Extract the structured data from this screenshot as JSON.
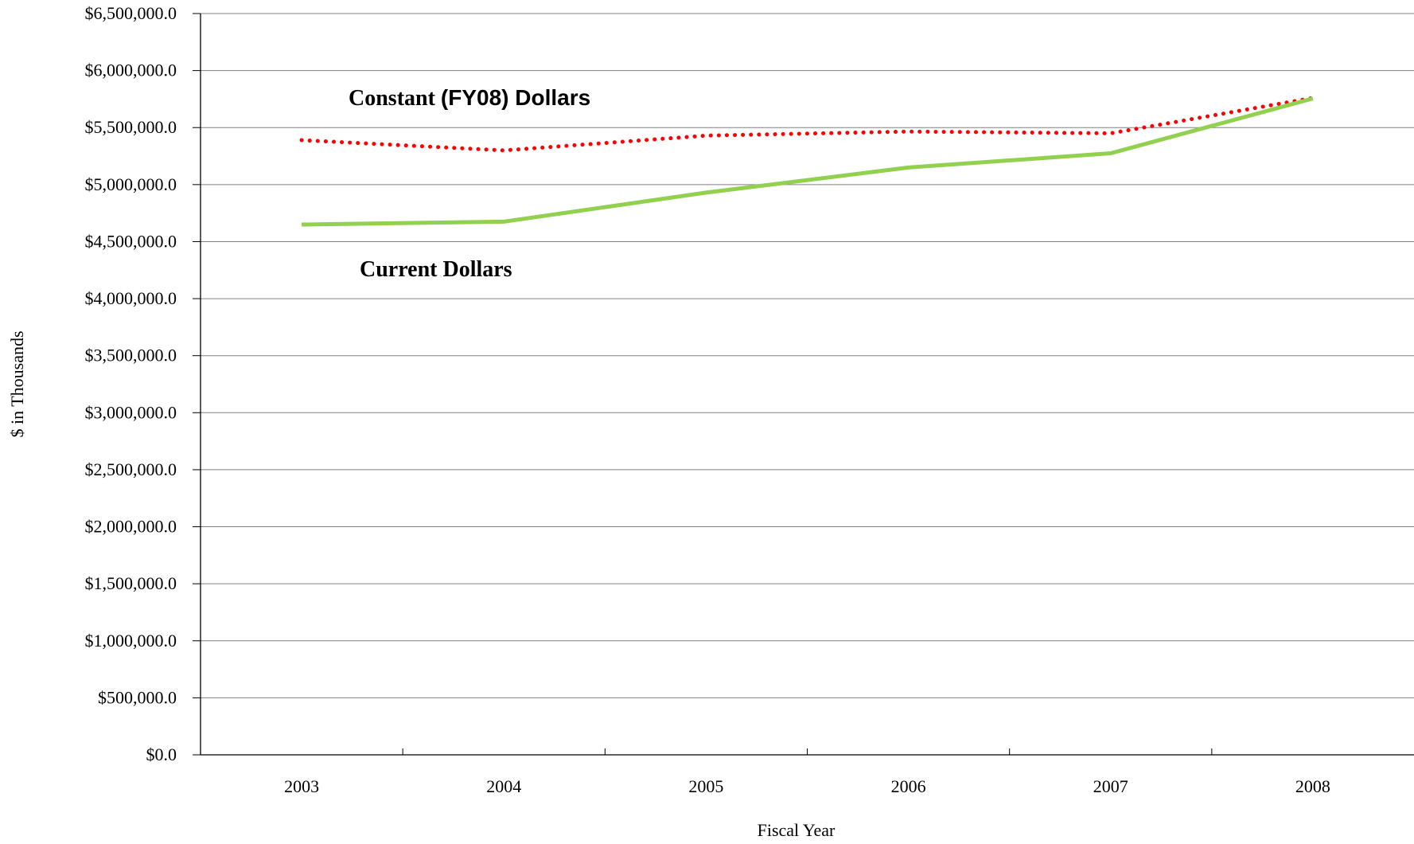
{
  "chart_data": {
    "type": "line",
    "title": "",
    "xlabel": "Fiscal Year",
    "ylabel": "$ in Thousands",
    "categories": [
      "2003",
      "2004",
      "2005",
      "2006",
      "2007",
      "2008"
    ],
    "ylim": [
      0,
      6500000
    ],
    "ytick_values": [
      0,
      500000,
      1000000,
      1500000,
      2000000,
      2500000,
      3000000,
      3500000,
      4000000,
      4500000,
      5000000,
      5500000,
      6000000,
      6500000
    ],
    "ytick_labels": [
      "$0.0",
      "$500,000.0",
      "$1,000,000.0",
      "$1,500,000.0",
      "$2,000,000.0",
      "$2,500,000.0",
      "$3,000,000.0",
      "$3,500,000.0",
      "$4,000,000.0",
      "$4,500,000.0",
      "$5,000,000.0",
      "$5,500,000.0",
      "$6,000,000.0",
      "$6,500,000.0"
    ],
    "grid": true,
    "legend": "none",
    "series": [
      {
        "name": "Constant (FY08) Dollars",
        "values": [
          5390000,
          5300000,
          5430000,
          5465000,
          5450000,
          5760000
        ],
        "color": "#ff0000",
        "style": "dotted"
      },
      {
        "name": "Current Dollars",
        "values": [
          4650000,
          4675000,
          4930000,
          5150000,
          5275000,
          5755000
        ],
        "color": "#92d050",
        "style": "solid"
      }
    ],
    "annotations": [
      {
        "text": "Constant (FY08) Dollars",
        "series": "Constant (FY08) Dollars"
      },
      {
        "text": "Current Dollars",
        "series": "Current Dollars"
      }
    ],
    "colors": {
      "axis": "#000000",
      "grid": "#808080",
      "background": "#ffffff"
    }
  }
}
